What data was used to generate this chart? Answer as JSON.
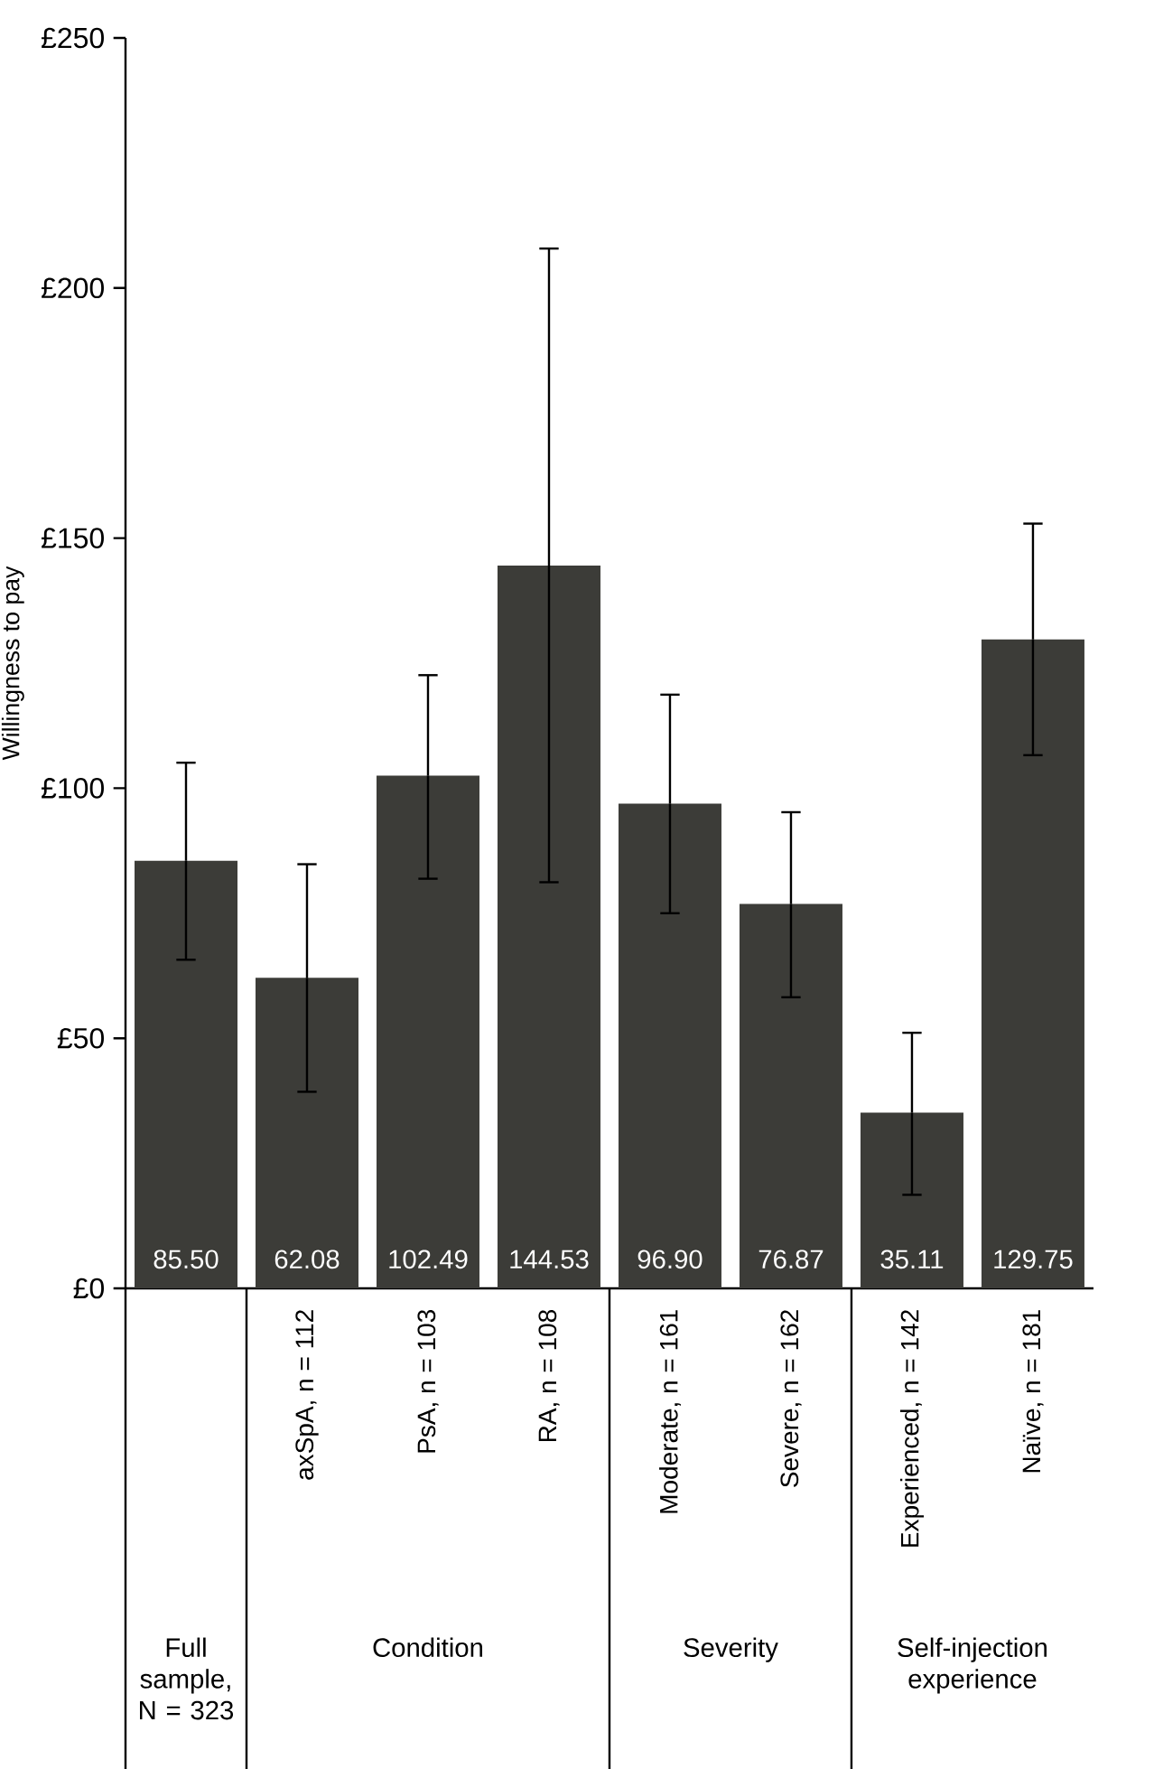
{
  "chart_data": {
    "type": "bar",
    "ylabel": "Willingness to pay",
    "categories": [
      null,
      "axSpA, n = 112",
      "PsA, n = 103",
      "RA, n = 108",
      "Moderate, n = 161",
      "Severe, n = 162",
      "Experienced, n = 142",
      "Naïve, n = 181"
    ],
    "values": [
      85.5,
      62.08,
      102.49,
      144.53,
      96.9,
      76.87,
      35.11,
      129.75
    ],
    "value_labels": [
      "85.50",
      "62.08",
      "102.49",
      "144.53",
      "96.90",
      "76.87",
      "35.11",
      "129.75"
    ],
    "errors": [
      [
        65.7,
        105.1
      ],
      [
        39.3,
        84.8
      ],
      [
        81.9,
        122.6
      ],
      [
        81.2,
        207.9
      ],
      [
        75.0,
        118.7
      ],
      [
        58.2,
        95.2
      ],
      [
        18.7,
        51.1
      ],
      [
        106.6,
        152.9
      ]
    ],
    "color": "#3c3c38",
    "ylim": [
      0,
      250
    ],
    "yticks": [
      {
        "value": 0,
        "label": "£0"
      },
      {
        "value": 50,
        "label": "£50"
      },
      {
        "value": 100,
        "label": "£100"
      },
      {
        "value": 150,
        "label": "£150"
      },
      {
        "value": 200,
        "label": "£200"
      },
      {
        "value": 250,
        "label": "£250"
      }
    ],
    "annotations": [
      "Full sample, N = 323",
      "Condition",
      "Severity",
      "Self-injection experience"
    ],
    "grid": false
  }
}
